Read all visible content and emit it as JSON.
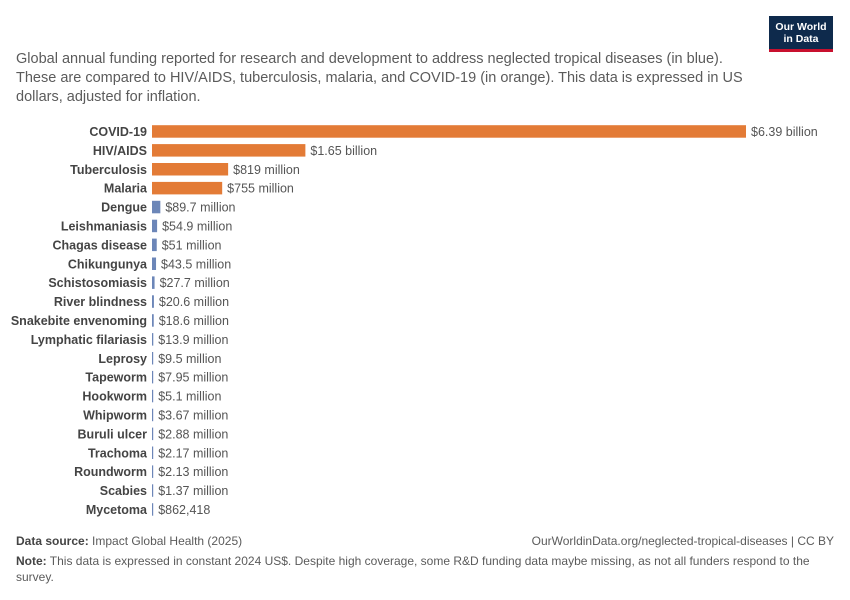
{
  "subtitle": "Global annual funding reported for research and development to address neglected tropical diseases (in blue). These are compared to HIV/AIDS, tuberculosis, malaria, and COVID-19 (in orange). This data is expressed in US dollars, adjusted for inflation.",
  "logo": {
    "line1": "Our World",
    "line2": "in Data"
  },
  "footer": {
    "source_label": "Data source:",
    "source_text": "Impact Global Health (2025)",
    "url": "OurWorldinData.org/neglected-tropical-diseases | CC BY",
    "note_label": "Note:",
    "note_text": "This data is expressed in constant 2024 US$. Despite high coverage, some R&D funding data maybe missing, as not all funders respond to the survey."
  },
  "colors": {
    "orange": "#e37b36",
    "blue": "#6c86b8"
  },
  "chart_data": {
    "type": "bar",
    "orientation": "horizontal",
    "categories": [
      "COVID-19",
      "HIV/AIDS",
      "Tuberculosis",
      "Malaria",
      "Dengue",
      "Leishmaniasis",
      "Chagas disease",
      "Chikungunya",
      "Schistosomiasis",
      "River blindness",
      "Snakebite envenoming",
      "Lymphatic filariasis",
      "Leprosy",
      "Tapeworm",
      "Hookworm",
      "Whipworm",
      "Buruli ulcer",
      "Trachoma",
      "Roundworm",
      "Scabies",
      "Mycetoma"
    ],
    "values": [
      6390000000,
      1650000000,
      819000000,
      755000000,
      89700000,
      54900000,
      51000000,
      43500000,
      27700000,
      20600000,
      18600000,
      13900000,
      9500000,
      7950000,
      5100000,
      3670000,
      2880000,
      2170000,
      2130000,
      1370000,
      862418
    ],
    "labels": [
      "$6.39 billion",
      "$1.65 billion",
      "$819 million",
      "$755 million",
      "$89.7 million",
      "$54.9 million",
      "$51 million",
      "$43.5 million",
      "$27.7 million",
      "$20.6 million",
      "$18.6 million",
      "$13.9 million",
      "$9.5 million",
      "$7.95 million",
      "$5.1 million",
      "$3.67 million",
      "$2.88 million",
      "$2.17 million",
      "$2.13 million",
      "$1.37 million",
      "$862,418"
    ],
    "groups": [
      "orange",
      "orange",
      "orange",
      "orange",
      "blue",
      "blue",
      "blue",
      "blue",
      "blue",
      "blue",
      "blue",
      "blue",
      "blue",
      "blue",
      "blue",
      "blue",
      "blue",
      "blue",
      "blue",
      "blue",
      "blue"
    ],
    "xlim": [
      0,
      6390000000
    ]
  }
}
